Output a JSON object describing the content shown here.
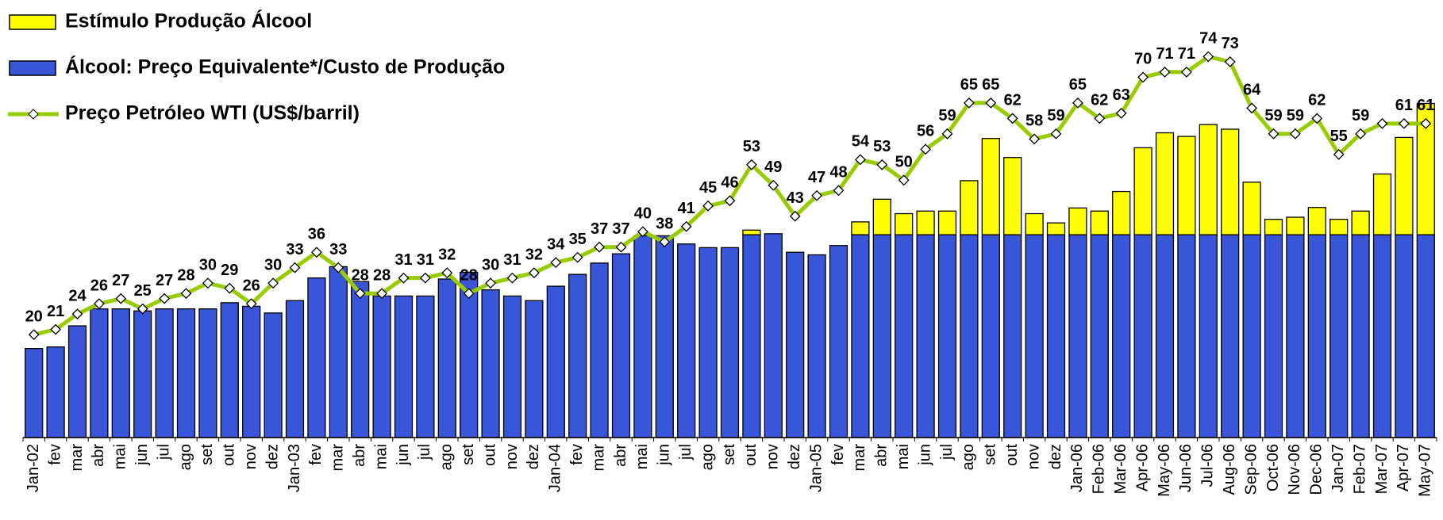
{
  "chart_data": {
    "type": "bar-line",
    "categories": [
      "Jan-02",
      "fev",
      "mar",
      "abr",
      "mai",
      "jun",
      "jul",
      "ago",
      "set",
      "out",
      "nov",
      "dez",
      "Jan-03",
      "fev",
      "mar",
      "abr",
      "mai",
      "jun",
      "jul",
      "ago",
      "set",
      "out",
      "nov",
      "dez",
      "Jan-04",
      "fev",
      "mar",
      "abr",
      "mai",
      "jun",
      "jul",
      "ago",
      "set",
      "out",
      "nov",
      "dez",
      "Jan-05",
      "fev",
      "mar",
      "abr",
      "mai",
      "jun",
      "jul",
      "ago",
      "set",
      "out",
      "nov",
      "dez",
      "Jan-06",
      "Feb-06",
      "Mar-06",
      "Apr-06",
      "May-06",
      "Jun-06",
      "Jul-06",
      "Aug-06",
      "Sep-06",
      "Oct-06",
      "Nov-06",
      "Dec-06",
      "Jan-07",
      "Feb-07",
      "Mar-07",
      "Apr-07",
      "May-07"
    ],
    "ylim": [
      0,
      85
    ],
    "series": [
      {
        "name": "Álcool: Preço Equivalente*/Custo de Produção",
        "type": "bar",
        "color": "#3a56d8",
        "values": [
          17.3,
          17.6,
          21.7,
          25,
          25,
          24.6,
          25,
          25,
          25,
          26.2,
          25.5,
          24.2,
          26.6,
          31,
          33.2,
          30.3,
          27.5,
          27.5,
          27.5,
          30.8,
          32.1,
          28.7,
          27.5,
          26.6,
          29.4,
          31.7,
          33.9,
          35.7,
          39.2,
          39.2,
          37.6,
          36.9,
          36.9,
          39.4,
          39.6,
          36,
          35.5,
          37.3,
          39.4,
          39.4,
          39.4,
          39.4,
          39.4,
          39.4,
          39.4,
          39.4,
          39.4,
          39.4,
          39.4,
          39.4,
          39.4,
          39.4,
          39.4,
          39.4,
          39.4,
          39.4,
          39.4,
          39.4,
          39.4,
          39.4,
          39.4,
          39.4,
          39.4,
          39.4,
          39.4
        ]
      },
      {
        "name": "Estímulo Produção Álcool",
        "type": "bar",
        "color": "#ffff00",
        "values": [
          0,
          0,
          0,
          0,
          0,
          0,
          0,
          0,
          0,
          0,
          0,
          0,
          0,
          0,
          0,
          0,
          0,
          0,
          0,
          0,
          0,
          0,
          0,
          0,
          0,
          0,
          0,
          0,
          0,
          0,
          0,
          0,
          0,
          0.9,
          0,
          0,
          0,
          0,
          2.5,
          6.9,
          4.1,
          4.6,
          4.6,
          10.5,
          18.7,
          15,
          4.1,
          2.3,
          5.2,
          4.6,
          8.4,
          16.9,
          19.8,
          19.1,
          21.4,
          20.5,
          10.2,
          3,
          3.4,
          5.3,
          3,
          4.6,
          11.8,
          18.9,
          25.5
        ]
      },
      {
        "name": "Preço Petróleo WTI (US$/barril)",
        "type": "line",
        "color": "#99cc00",
        "values": [
          20,
          21,
          24,
          26,
          27,
          25,
          27,
          28,
          30,
          29,
          26,
          30,
          33,
          36,
          33,
          28,
          28,
          31,
          31,
          32,
          28,
          30,
          31,
          32,
          34,
          35,
          37,
          37,
          40,
          38,
          41,
          45,
          46,
          53,
          49,
          43,
          47,
          48,
          54,
          53,
          50,
          56,
          59,
          65,
          65,
          62,
          58,
          59,
          65,
          62,
          63,
          70,
          71,
          71,
          74,
          73,
          64,
          59,
          59,
          62,
          55,
          59,
          61,
          61,
          61
        ],
        "value_labels": [
          "20",
          "21",
          "24",
          "26",
          "27",
          "25",
          "27",
          "28",
          "30",
          "29",
          "26",
          "30",
          "33",
          "36",
          "33",
          "28",
          "28",
          "31",
          "31",
          "32",
          "28",
          "30",
          "31",
          "32",
          "34",
          "35",
          "37",
          "37",
          "40",
          "38",
          "41",
          "45",
          "46",
          "53",
          "49",
          "43",
          "47",
          "48",
          "54",
          "53",
          "50",
          "56",
          "59",
          "65",
          "65",
          "62",
          "58",
          "59",
          "65",
          "62",
          "63",
          "70",
          "71",
          "71",
          "74",
          "73",
          "64",
          "59",
          "59",
          "62",
          "55",
          "59",
          null,
          "61",
          "61"
        ]
      }
    ]
  }
}
